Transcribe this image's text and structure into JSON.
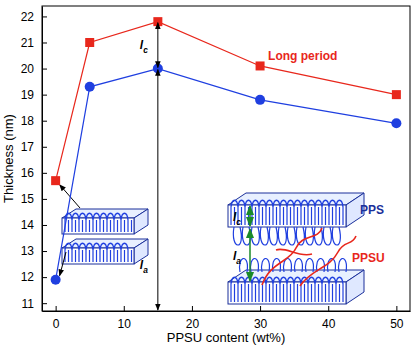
{
  "chart_data": {
    "type": "line",
    "xlabel": "PPSU content (wt%)",
    "ylabel": "Thickness (nm)",
    "xlim": [
      -2,
      52
    ],
    "ylim": [
      10.7,
      22.4
    ],
    "xticks": [
      0,
      10,
      20,
      30,
      40,
      50
    ],
    "yticks": [
      11,
      12,
      13,
      14,
      15,
      16,
      17,
      18,
      19,
      20,
      21,
      22
    ],
    "x": [
      0,
      5,
      15,
      30,
      50
    ],
    "series": [
      {
        "name": "Long period",
        "color": "#e8271c",
        "marker": "square",
        "values": [
          15.7,
          21.0,
          21.8,
          20.1,
          19.0
        ]
      },
      {
        "color": "#1f3fe0",
        "marker": "circle",
        "values": [
          11.9,
          19.3,
          20.0,
          18.8,
          17.9
        ]
      }
    ],
    "annotations": [
      {
        "text": "l",
        "sub": "c",
        "x": 15,
        "from": 20.0,
        "to": 21.8
      },
      {
        "text": "l",
        "sub": "a",
        "x": 15,
        "from": 10.7,
        "to": 20.0
      }
    ],
    "inset_labels": [
      {
        "text": "PPS"
      },
      {
        "text": "PPSU"
      },
      {
        "text": "l",
        "sub": "c"
      },
      {
        "text": "l",
        "sub": "a"
      }
    ]
  }
}
